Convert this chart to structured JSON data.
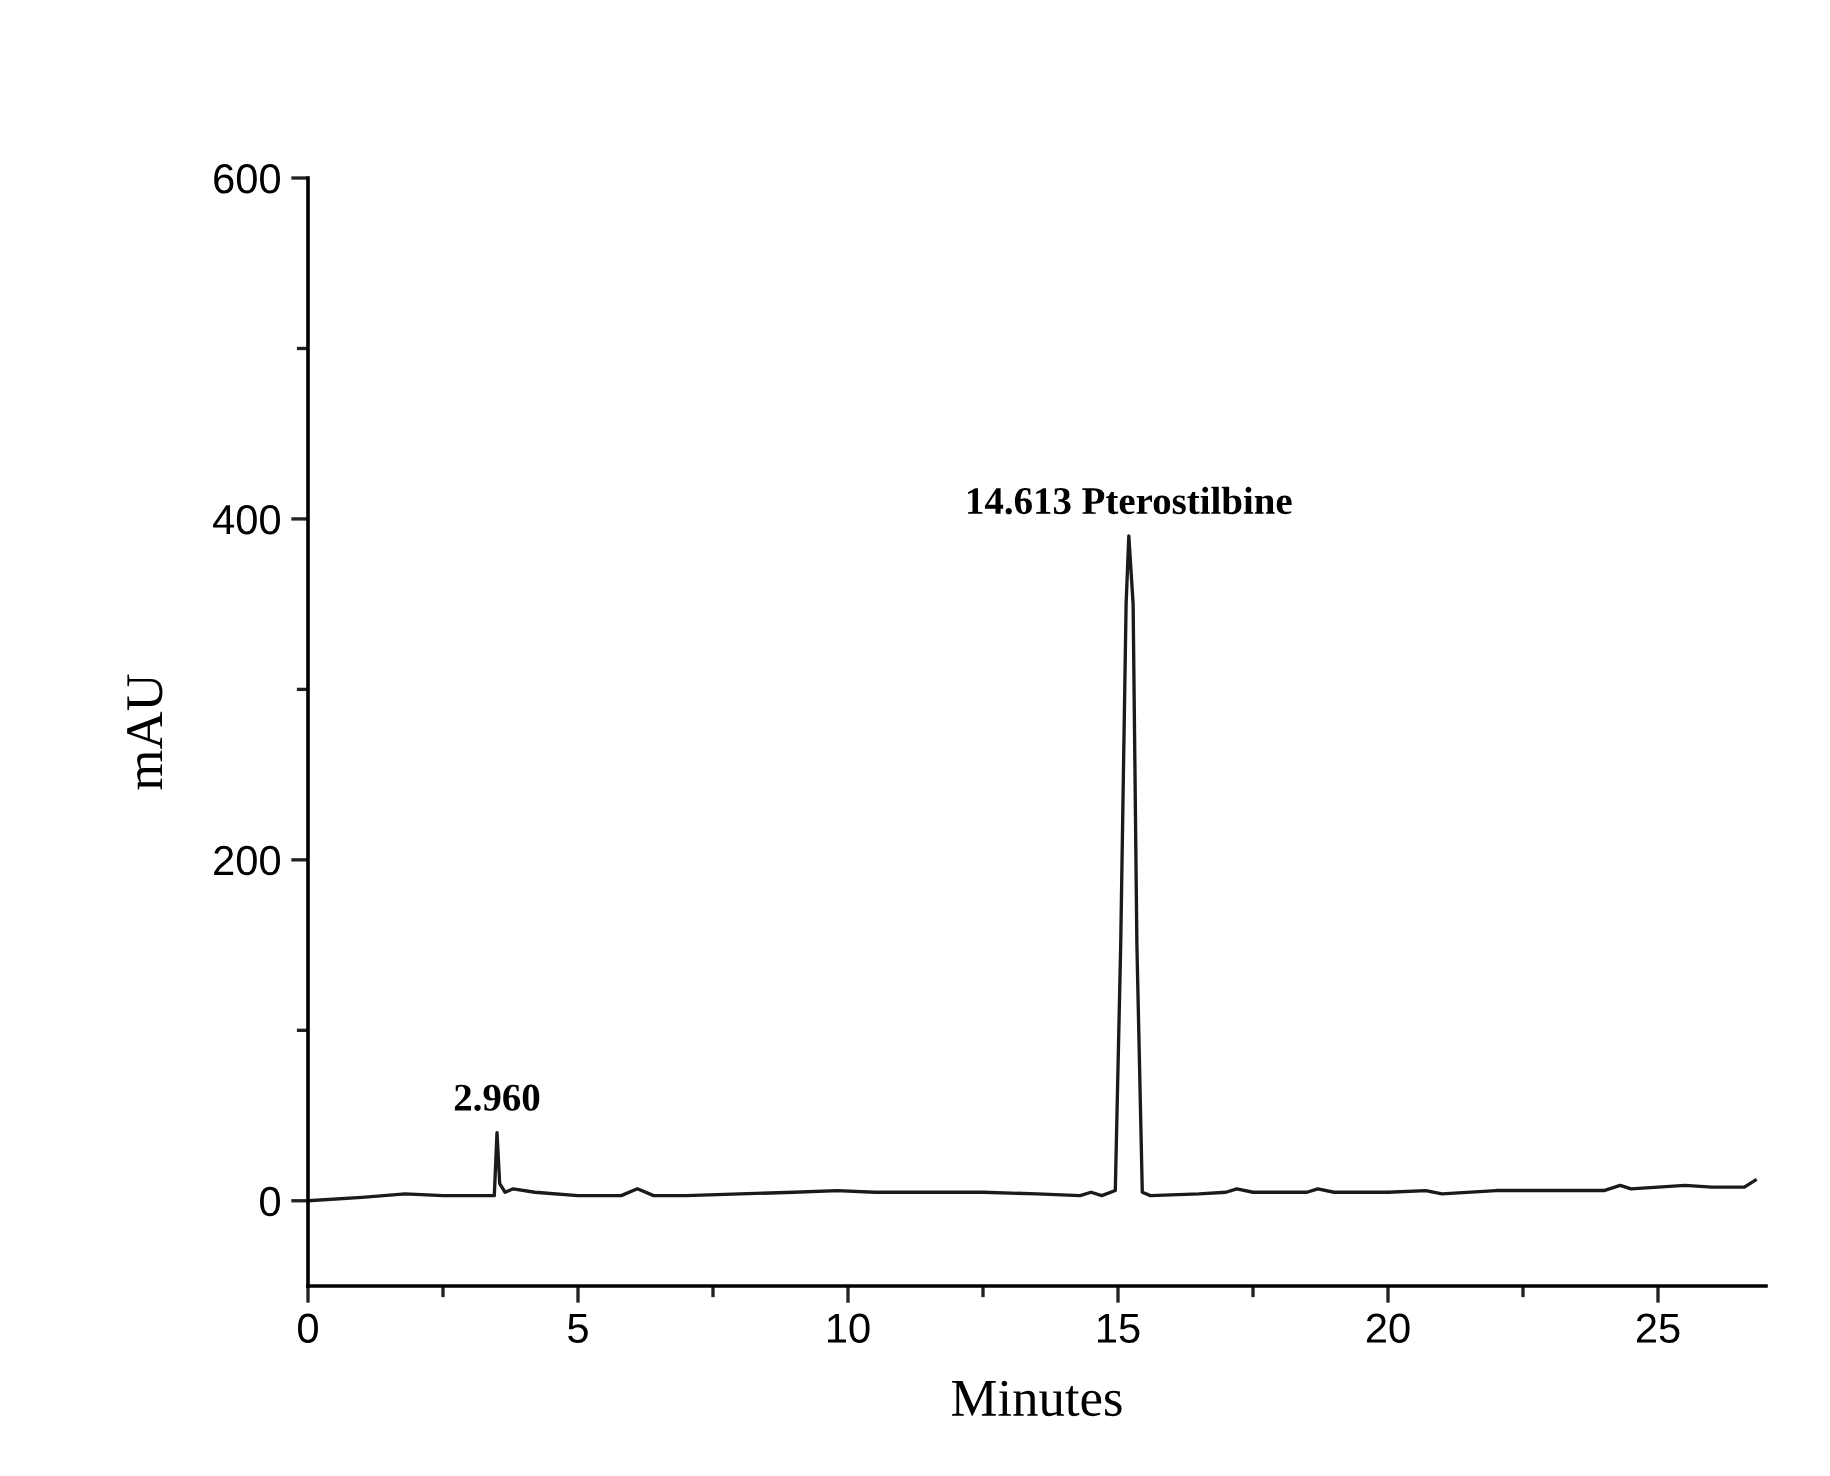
{
  "chart_data": {
    "type": "line",
    "xlabel": "Minutes",
    "ylabel": "mAU",
    "color": "#1a1a1a",
    "x": [
      0,
      1,
      1.8,
      2.5,
      3.45,
      3.5,
      3.55,
      3.65,
      3.8,
      4.2,
      5,
      5.8,
      6.1,
      6.4,
      7,
      8,
      9,
      9.8,
      10.5,
      11.5,
      12.5,
      13.5,
      14.3,
      14.5,
      14.7,
      14.95,
      15.05,
      15.15,
      15.2,
      15.28,
      15.35,
      15.45,
      15.6,
      16.5,
      17,
      17.2,
      17.5,
      18.5,
      18.7,
      19,
      20,
      20.7,
      21,
      22,
      23,
      24,
      24.3,
      24.5,
      25,
      25.5,
      26,
      26.6,
      26.8
    ],
    "values": [
      0,
      2,
      4,
      3,
      3,
      40,
      10,
      5,
      7,
      5,
      3,
      3,
      7,
      3,
      3,
      4,
      5,
      6,
      5,
      5,
      5,
      4,
      3,
      5,
      3,
      6,
      150,
      350,
      390,
      350,
      150,
      5,
      3,
      4,
      5,
      7,
      5,
      5,
      7,
      5,
      5,
      6,
      4,
      6,
      6,
      6,
      9,
      7,
      8,
      9,
      8,
      8,
      12
    ],
    "xlim": [
      0,
      27
    ],
    "ylim": [
      -50,
      600
    ],
    "xticks": [
      0,
      {
        "value": 2.5,
        "label": null
      },
      5,
      {
        "value": 7.5,
        "label": null
      },
      10,
      {
        "value": 12.5,
        "label": null
      },
      15,
      {
        "value": 17.5,
        "label": null
      },
      20,
      {
        "value": 22.5,
        "label": null
      },
      25
    ],
    "yticks": [
      0,
      {
        "value": 100,
        "label": null
      },
      200,
      {
        "value": 300,
        "label": null
      },
      400,
      {
        "value": 500,
        "label": null
      },
      600
    ],
    "annotations": [
      {
        "text": "2.960",
        "x": 3.5,
        "y": 40
      },
      {
        "text": "14.613 Pterostilbine",
        "x": 15.2,
        "y": 390
      }
    ],
    "grid": false,
    "legend": false
  }
}
